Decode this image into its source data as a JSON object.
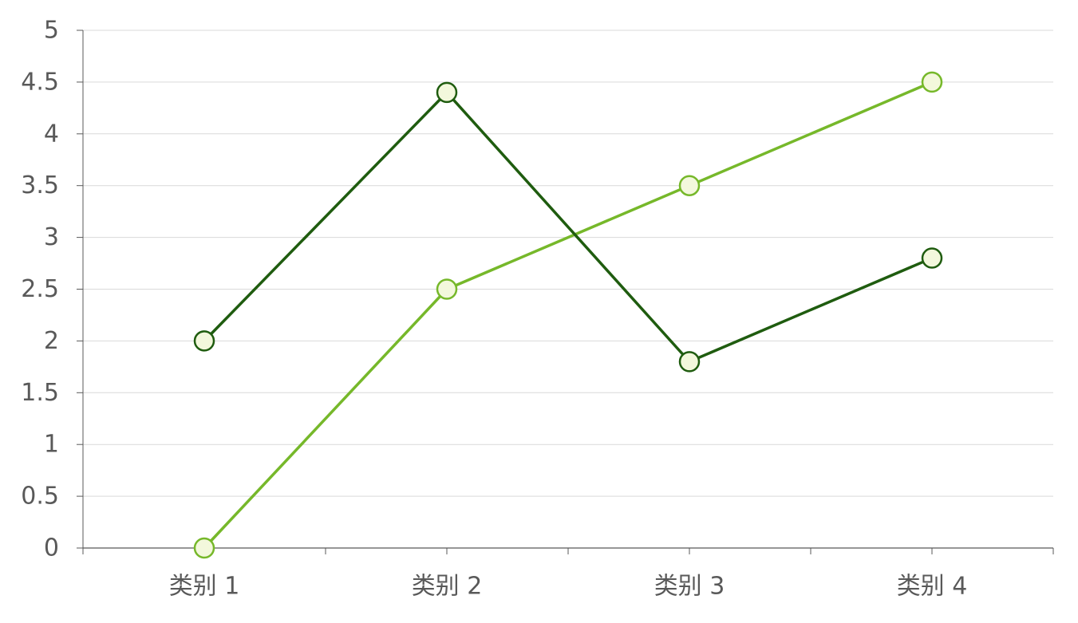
{
  "chart_data": {
    "type": "line",
    "categories": [
      "类别 1",
      "类别 2",
      "类别 3",
      "类别 4"
    ],
    "series": [
      {
        "values": [
          2.0,
          4.4,
          1.8,
          2.8
        ],
        "color": "#1f5c0f"
      },
      {
        "values": [
          0.0,
          2.5,
          3.5,
          4.5
        ],
        "color": "#76b82a"
      }
    ],
    "ylim": [
      0,
      5
    ],
    "y_ticks": [
      0,
      0.5,
      1,
      1.5,
      2,
      2.5,
      3,
      3.5,
      4,
      4.5,
      5
    ],
    "y_tick_labels": [
      "0",
      "0.5",
      "1",
      "1.5",
      "2",
      "2.5",
      "3",
      "3.5",
      "4",
      "4.5",
      "5"
    ],
    "grid": true,
    "marker": "circle",
    "marker_fill": "#f3f8dc",
    "grid_color": "#d9d9d9",
    "axis_color": "#595959",
    "title": "",
    "xlabel": "",
    "ylabel": ""
  }
}
